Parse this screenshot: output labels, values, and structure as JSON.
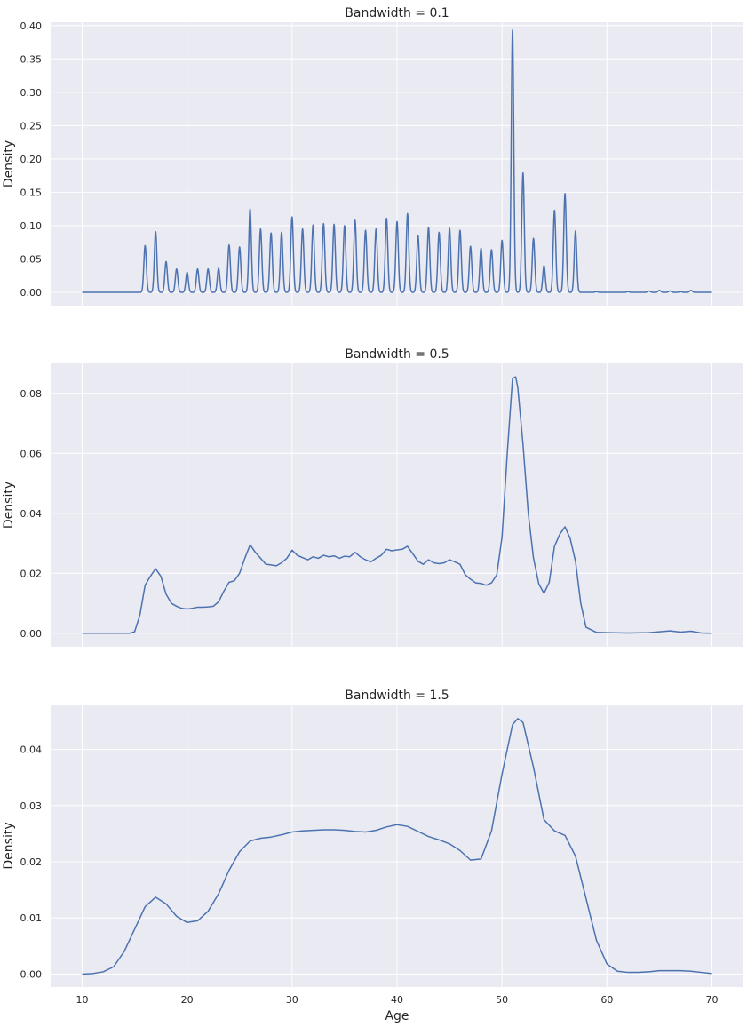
{
  "chart_data": [
    {
      "type": "line",
      "title": "Bandwidth = 0.1",
      "xlabel": "",
      "ylabel": "Density",
      "xlim": [
        7,
        73
      ],
      "ylim": [
        -0.02,
        0.405
      ],
      "grid": true,
      "xticks": [
        10,
        20,
        30,
        40,
        50,
        60,
        70
      ],
      "xtick_labels_visible": false,
      "yticks": [
        0.0,
        0.05,
        0.1,
        0.15,
        0.2,
        0.25,
        0.3,
        0.35,
        0.4
      ],
      "ytick_labels": [
        "0.00",
        "0.05",
        "0.10",
        "0.15",
        "0.20",
        "0.25",
        "0.30",
        "0.35",
        "0.40"
      ],
      "series": [
        {
          "color": "#4c72b0",
          "peaks": [
            {
              "x": 16,
              "y": 0.07
            },
            {
              "x": 17,
              "y": 0.091
            },
            {
              "x": 18,
              "y": 0.046
            },
            {
              "x": 19,
              "y": 0.035
            },
            {
              "x": 20,
              "y": 0.03
            },
            {
              "x": 21,
              "y": 0.035
            },
            {
              "x": 22,
              "y": 0.035
            },
            {
              "x": 23,
              "y": 0.036
            },
            {
              "x": 24,
              "y": 0.071
            },
            {
              "x": 25,
              "y": 0.068
            },
            {
              "x": 26,
              "y": 0.125
            },
            {
              "x": 27,
              "y": 0.095
            },
            {
              "x": 28,
              "y": 0.089
            },
            {
              "x": 29,
              "y": 0.09
            },
            {
              "x": 30,
              "y": 0.113
            },
            {
              "x": 31,
              "y": 0.095
            },
            {
              "x": 32,
              "y": 0.101
            },
            {
              "x": 33,
              "y": 0.103
            },
            {
              "x": 34,
              "y": 0.102
            },
            {
              "x": 35,
              "y": 0.1
            },
            {
              "x": 36,
              "y": 0.108
            },
            {
              "x": 37,
              "y": 0.093
            },
            {
              "x": 38,
              "y": 0.095
            },
            {
              "x": 39,
              "y": 0.111
            },
            {
              "x": 40,
              "y": 0.106
            },
            {
              "x": 41,
              "y": 0.118
            },
            {
              "x": 42,
              "y": 0.085
            },
            {
              "x": 43,
              "y": 0.097
            },
            {
              "x": 44,
              "y": 0.09
            },
            {
              "x": 45,
              "y": 0.096
            },
            {
              "x": 46,
              "y": 0.093
            },
            {
              "x": 47,
              "y": 0.069
            },
            {
              "x": 48,
              "y": 0.066
            },
            {
              "x": 49,
              "y": 0.064
            },
            {
              "x": 50,
              "y": 0.078
            },
            {
              "x": 51,
              "y": 0.393
            },
            {
              "x": 52,
              "y": 0.179
            },
            {
              "x": 53,
              "y": 0.081
            },
            {
              "x": 54,
              "y": 0.04
            },
            {
              "x": 55,
              "y": 0.123
            },
            {
              "x": 56,
              "y": 0.148
            },
            {
              "x": 57,
              "y": 0.092
            },
            {
              "x": 59,
              "y": 0.001
            },
            {
              "x": 62,
              "y": 0.001
            },
            {
              "x": 64,
              "y": 0.002
            },
            {
              "x": 65,
              "y": 0.003
            },
            {
              "x": 66,
              "y": 0.002
            },
            {
              "x": 67,
              "y": 0.001
            },
            {
              "x": 68,
              "y": 0.003
            }
          ],
          "x_range": [
            10,
            70
          ]
        }
      ]
    },
    {
      "type": "line",
      "title": "Bandwidth = 0.5",
      "xlabel": "",
      "ylabel": "Density",
      "xlim": [
        7,
        73
      ],
      "ylim": [
        -0.0045,
        0.09
      ],
      "grid": true,
      "xticks": [
        10,
        20,
        30,
        40,
        50,
        60,
        70
      ],
      "xtick_labels_visible": false,
      "yticks": [
        0.0,
        0.02,
        0.04,
        0.06,
        0.08
      ],
      "ytick_labels": [
        "0.00",
        "0.02",
        "0.04",
        "0.06",
        "0.08"
      ],
      "series": [
        {
          "color": "#4c72b0",
          "points": [
            [
              10,
              0.0
            ],
            [
              14.5,
              0.0
            ],
            [
              15,
              0.0005
            ],
            [
              15.5,
              0.006
            ],
            [
              16,
              0.016
            ],
            [
              16.5,
              0.019
            ],
            [
              17,
              0.0215
            ],
            [
              17.5,
              0.019
            ],
            [
              18,
              0.013
            ],
            [
              18.5,
              0.01
            ],
            [
              19,
              0.009
            ],
            [
              19.5,
              0.0083
            ],
            [
              20,
              0.0081
            ],
            [
              20.5,
              0.0083
            ],
            [
              21,
              0.0087
            ],
            [
              21.5,
              0.0087
            ],
            [
              22,
              0.0088
            ],
            [
              22.5,
              0.009
            ],
            [
              23,
              0.0105
            ],
            [
              23.5,
              0.014
            ],
            [
              24,
              0.017
            ],
            [
              24.5,
              0.0175
            ],
            [
              25,
              0.02
            ],
            [
              25.5,
              0.025
            ],
            [
              26,
              0.0295
            ],
            [
              26.5,
              0.027
            ],
            [
              27,
              0.025
            ],
            [
              27.5,
              0.023
            ],
            [
              28,
              0.0228
            ],
            [
              28.5,
              0.0225
            ],
            [
              29,
              0.0235
            ],
            [
              29.5,
              0.025
            ],
            [
              30,
              0.0277
            ],
            [
              30.5,
              0.026
            ],
            [
              31,
              0.0252
            ],
            [
              31.5,
              0.0245
            ],
            [
              32,
              0.0255
            ],
            [
              32.5,
              0.025
            ],
            [
              33,
              0.026
            ],
            [
              33.5,
              0.0255
            ],
            [
              34,
              0.0258
            ],
            [
              34.5,
              0.025
            ],
            [
              35,
              0.0257
            ],
            [
              35.5,
              0.0255
            ],
            [
              36,
              0.027
            ],
            [
              36.5,
              0.0255
            ],
            [
              37,
              0.0245
            ],
            [
              37.5,
              0.0238
            ],
            [
              38,
              0.025
            ],
            [
              38.5,
              0.026
            ],
            [
              39,
              0.028
            ],
            [
              39.5,
              0.0275
            ],
            [
              40,
              0.0278
            ],
            [
              40.5,
              0.028
            ],
            [
              41,
              0.029
            ],
            [
              41.5,
              0.0265
            ],
            [
              42,
              0.024
            ],
            [
              42.5,
              0.023
            ],
            [
              43,
              0.0245
            ],
            [
              43.5,
              0.0235
            ],
            [
              44,
              0.0232
            ],
            [
              44.5,
              0.0235
            ],
            [
              45,
              0.0245
            ],
            [
              45.5,
              0.0238
            ],
            [
              46,
              0.023
            ],
            [
              46.5,
              0.0195
            ],
            [
              47,
              0.018
            ],
            [
              47.5,
              0.0168
            ],
            [
              48,
              0.0166
            ],
            [
              48.5,
              0.016
            ],
            [
              49,
              0.0168
            ],
            [
              49.5,
              0.0195
            ],
            [
              50,
              0.032
            ],
            [
              50.5,
              0.06
            ],
            [
              51,
              0.085
            ],
            [
              51.3,
              0.0855
            ],
            [
              51.5,
              0.082
            ],
            [
              52,
              0.063
            ],
            [
              52.5,
              0.04
            ],
            [
              53,
              0.025
            ],
            [
              53.5,
              0.0165
            ],
            [
              54,
              0.0133
            ],
            [
              54.5,
              0.017
            ],
            [
              55,
              0.029
            ],
            [
              55.5,
              0.033
            ],
            [
              56,
              0.0355
            ],
            [
              56.5,
              0.0315
            ],
            [
              57,
              0.024
            ],
            [
              57.5,
              0.01
            ],
            [
              58,
              0.002
            ],
            [
              59,
              0.0003
            ],
            [
              60,
              0.0002
            ],
            [
              62,
              0.0001
            ],
            [
              64,
              0.0002
            ],
            [
              65,
              0.0005
            ],
            [
              66,
              0.0008
            ],
            [
              67,
              0.0004
            ],
            [
              68,
              0.0007
            ],
            [
              69,
              0.0001
            ],
            [
              70,
              0.0
            ]
          ]
        }
      ]
    },
    {
      "type": "line",
      "title": "Bandwidth = 1.5",
      "xlabel": "Age",
      "ylabel": "Density",
      "xlim": [
        7,
        73
      ],
      "ylim": [
        -0.0023,
        0.048
      ],
      "grid": true,
      "xticks": [
        10,
        20,
        30,
        40,
        50,
        60,
        70
      ],
      "xtick_labels": [
        "10",
        "20",
        "30",
        "40",
        "50",
        "60",
        "70"
      ],
      "xtick_labels_visible": true,
      "yticks": [
        0.0,
        0.01,
        0.02,
        0.03,
        0.04
      ],
      "ytick_labels": [
        "0.00",
        "0.01",
        "0.02",
        "0.03",
        "0.04"
      ],
      "series": [
        {
          "color": "#4c72b0",
          "points": [
            [
              10,
              0.0
            ],
            [
              11,
              0.0001
            ],
            [
              12,
              0.0004
            ],
            [
              13,
              0.0013
            ],
            [
              14,
              0.004
            ],
            [
              15,
              0.008
            ],
            [
              16,
              0.012
            ],
            [
              17,
              0.0137
            ],
            [
              18,
              0.0125
            ],
            [
              19,
              0.0103
            ],
            [
              20,
              0.0092
            ],
            [
              21,
              0.0095
            ],
            [
              22,
              0.0112
            ],
            [
              23,
              0.0143
            ],
            [
              24,
              0.0185
            ],
            [
              25,
              0.0218
            ],
            [
              26,
              0.0237
            ],
            [
              27,
              0.0242
            ],
            [
              28,
              0.0244
            ],
            [
              29,
              0.0248
            ],
            [
              30,
              0.0253
            ],
            [
              31,
              0.0255
            ],
            [
              32,
              0.0256
            ],
            [
              33,
              0.0257
            ],
            [
              34,
              0.0257
            ],
            [
              35,
              0.0256
            ],
            [
              36,
              0.0254
            ],
            [
              37,
              0.0253
            ],
            [
              38,
              0.0256
            ],
            [
              39,
              0.0262
            ],
            [
              40,
              0.0266
            ],
            [
              41,
              0.0263
            ],
            [
              42,
              0.0254
            ],
            [
              43,
              0.0245
            ],
            [
              44,
              0.0239
            ],
            [
              45,
              0.0232
            ],
            [
              46,
              0.022
            ],
            [
              47,
              0.0203
            ],
            [
              48,
              0.0205
            ],
            [
              49,
              0.0255
            ],
            [
              50,
              0.0356
            ],
            [
              51,
              0.0444
            ],
            [
              51.5,
              0.0455
            ],
            [
              52,
              0.0448
            ],
            [
              53,
              0.0368
            ],
            [
              54,
              0.0275
            ],
            [
              55,
              0.0255
            ],
            [
              56,
              0.0247
            ],
            [
              57,
              0.021
            ],
            [
              58,
              0.0135
            ],
            [
              59,
              0.006
            ],
            [
              60,
              0.0018
            ],
            [
              61,
              0.0005
            ],
            [
              62,
              0.0003
            ],
            [
              63,
              0.0003
            ],
            [
              64,
              0.0004
            ],
            [
              65,
              0.0006
            ],
            [
              66,
              0.0006
            ],
            [
              67,
              0.0006
            ],
            [
              68,
              0.0005
            ],
            [
              69,
              0.0003
            ],
            [
              70,
              0.0001
            ]
          ]
        }
      ]
    }
  ]
}
